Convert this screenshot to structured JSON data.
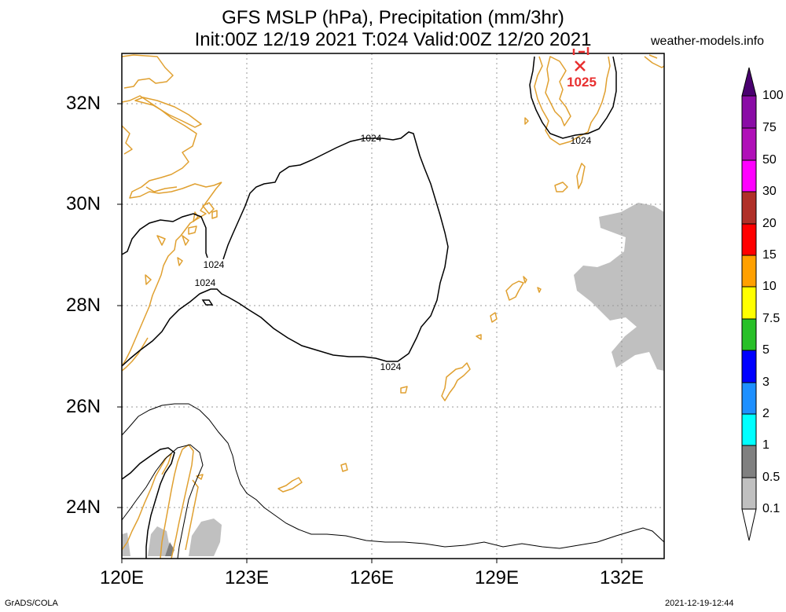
{
  "title": {
    "line1": "GFS MSLP (hPa), Precipitation (mm/3hr)",
    "line2": "Init:00Z 12/19 2021 T:024 Valid:00Z 12/20 2021"
  },
  "credit": "weather-models.info",
  "footer": {
    "left": "GrADS/COLA",
    "right": "2021-12-19-12:44"
  },
  "map": {
    "lon_range": [
      120,
      133
    ],
    "lat_range": [
      23,
      33
    ],
    "lat_labels": [
      "32N",
      "30N",
      "28N",
      "26N",
      "24N"
    ],
    "lon_labels": [
      "120E",
      "123E",
      "126E",
      "129E",
      "132E"
    ],
    "grid": "dotted",
    "coastline_color": "#e0a030",
    "precip_shade_color": "#c0c0c0",
    "isobar_labels": [
      {
        "text": "1024"
      },
      {
        "text": "1024"
      },
      {
        "text": "1024"
      },
      {
        "text": "1024"
      },
      {
        "text": "1024"
      }
    ],
    "high_center": {
      "label": "1025",
      "marker": "x",
      "color": "#e83030"
    }
  },
  "colorbar": {
    "labels": [
      "100",
      "75",
      "50",
      "30",
      "20",
      "15",
      "10",
      "7.5",
      "5",
      "3",
      "2",
      "1",
      "0.5",
      "0.1"
    ],
    "colors": [
      "#6a0a8a",
      "#8a0ca6",
      "#c020c0",
      "#ff00ff",
      "#b03028",
      "#ff0000",
      "#ffa000",
      "#ffff00",
      "#28c028",
      "#0000ff",
      "#1e90ff",
      "#00ffff",
      "#808080",
      "#c0c0c0"
    ],
    "top_cap_color": "#4a0070",
    "bottom_cap_color": "#ffffff"
  }
}
